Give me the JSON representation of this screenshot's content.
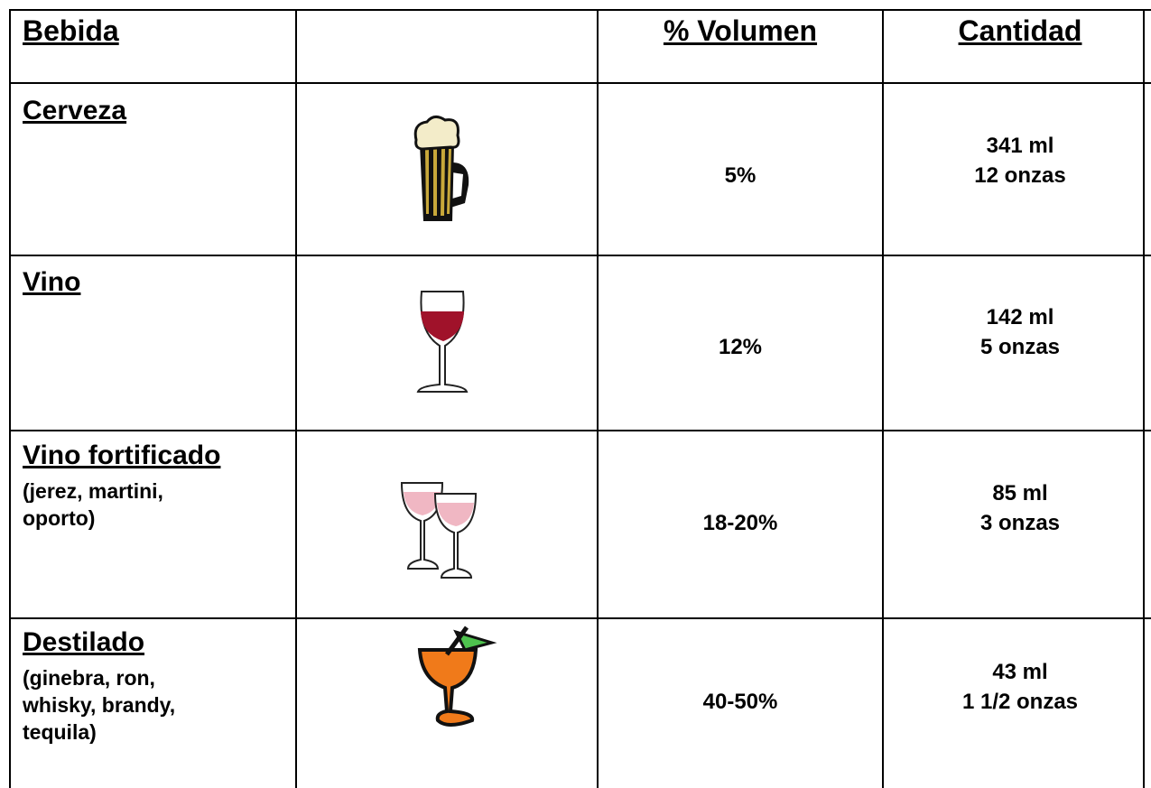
{
  "header": {
    "bebida": "Bebida",
    "volumen": "% Volumen",
    "cantidad": "Cantidad"
  },
  "rows": [
    {
      "name": "Cerveza",
      "details": [],
      "volume": "5%",
      "amount": [
        "341 ml",
        "12 onzas"
      ]
    },
    {
      "name": "Vino",
      "details": [],
      "volume": "12%",
      "amount": [
        "142 ml",
        "5 onzas"
      ]
    },
    {
      "name": "Vino fortificado",
      "details": [
        "(jerez, martini,",
        "oporto)"
      ],
      "volume": "18-20%",
      "amount": [
        "85 ml",
        "3 onzas"
      ]
    },
    {
      "name": "Destilado",
      "details": [
        "(ginebra, ron,",
        "whisky, brandy,",
        "tequila)"
      ],
      "volume": "40-50%",
      "amount": [
        "43 ml",
        "1 1/2 onzas"
      ]
    }
  ]
}
